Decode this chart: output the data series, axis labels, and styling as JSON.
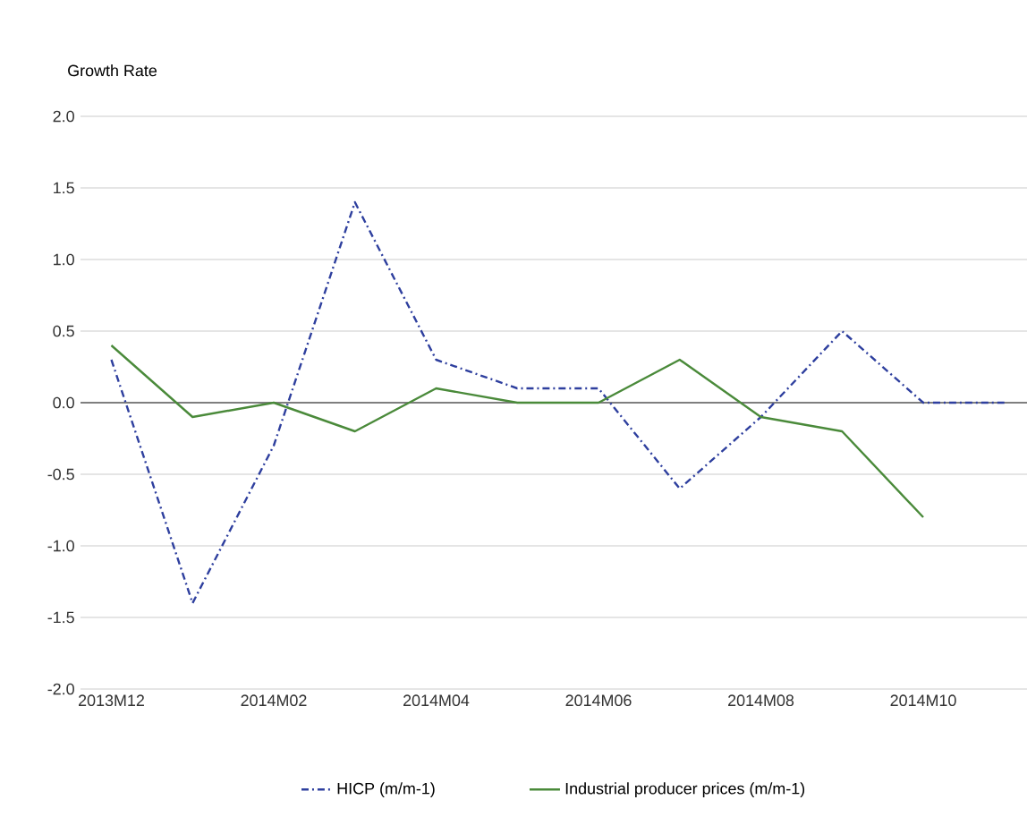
{
  "chart_data": {
    "type": "line",
    "ylabel": "Growth Rate",
    "categories": [
      "2013M12",
      null,
      "2014M02",
      null,
      "2014M04",
      null,
      "2014M06",
      null,
      "2014M08",
      null,
      "2014M10",
      null
    ],
    "series": [
      {
        "name": "HICP (m/m-1)",
        "color": "#2e3f9e",
        "line_style": "dashdot",
        "values": [
          0.3,
          -1.4,
          -0.3,
          1.4,
          0.3,
          0.1,
          0.1,
          -0.6,
          -0.1,
          0.5,
          0.0,
          0.0
        ]
      },
      {
        "name": "Industrial producer prices (m/m-1)",
        "color": "#4a8a3a",
        "line_style": "solid",
        "values": [
          0.4,
          -0.1,
          0.0,
          -0.2,
          0.1,
          0.0,
          0.0,
          0.3,
          -0.1,
          -0.2,
          -0.8,
          null
        ]
      }
    ],
    "ylim": [
      -2.0,
      2.0
    ],
    "yticks": [
      {
        "value": -2.0,
        "label": "-2.0"
      },
      {
        "value": -1.5,
        "label": "-1.5"
      },
      {
        "value": -1.0,
        "label": "-1.0"
      },
      {
        "value": -0.5,
        "label": "-0.5"
      },
      {
        "value": 0.0,
        "label": "0.0"
      },
      {
        "value": 0.5,
        "label": "0.5"
      },
      {
        "value": 1.0,
        "label": "1.0"
      },
      {
        "value": 1.5,
        "label": "1.5"
      },
      {
        "value": 2.0,
        "label": "2.0"
      }
    ],
    "ref_lines": [
      {
        "axis": "y",
        "value": 0.0,
        "color": "#7f7f7f"
      }
    ],
    "grid": "y",
    "legend": "bottom",
    "marker": "none"
  }
}
